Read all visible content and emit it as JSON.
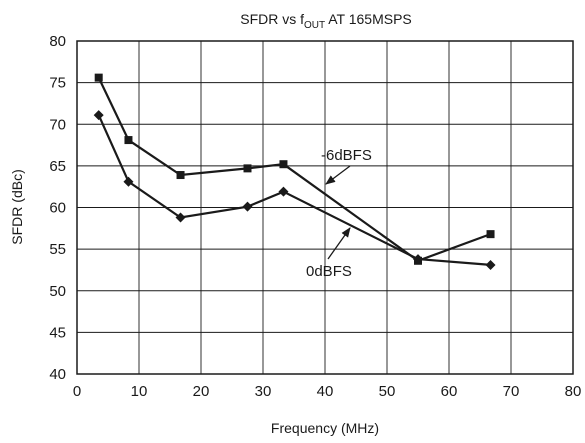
{
  "chart_data": {
    "type": "line",
    "title_main": "SFDR vs f",
    "title_sub": "OUT",
    "title_tail": " AT 165MSPS",
    "xlabel": "Frequency (MHz)",
    "ylabel": "SFDR (dBc)",
    "xlim": [
      0,
      80
    ],
    "ylim": [
      40,
      80
    ],
    "xticks": [
      0,
      10,
      20,
      30,
      40,
      50,
      60,
      70,
      80
    ],
    "yticks": [
      40,
      45,
      50,
      55,
      60,
      65,
      70,
      75,
      80
    ],
    "grid": true,
    "series": [
      {
        "name": "-6dBFS",
        "marker": "square",
        "x": [
          3.5,
          8.3,
          16.7,
          27.5,
          33.3,
          55.0,
          66.7
        ],
        "y": [
          75.6,
          68.1,
          63.9,
          64.7,
          65.2,
          53.6,
          56.8
        ]
      },
      {
        "name": "0dBFS",
        "marker": "diamond",
        "x": [
          3.5,
          8.3,
          16.7,
          27.5,
          33.3,
          55.0,
          66.7
        ],
        "y": [
          71.1,
          63.1,
          58.8,
          60.1,
          61.9,
          53.8,
          53.1
        ]
      }
    ]
  }
}
